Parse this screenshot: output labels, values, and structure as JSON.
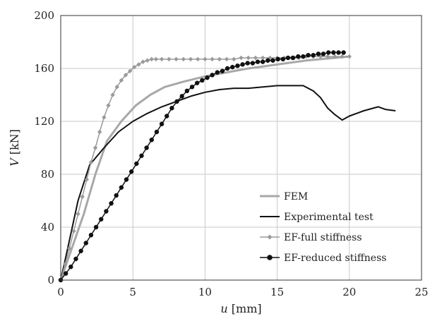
{
  "chart_data": {
    "type": "line",
    "xlabel_var": "u",
    "xlabel_unit": "[mm]",
    "ylabel_var": "V",
    "ylabel_unit": "[kN]",
    "xlim": [
      0,
      25
    ],
    "ylim": [
      0,
      200
    ],
    "xticks": [
      "0",
      "5",
      "10",
      "15",
      "20",
      "25"
    ],
    "yticks": [
      "0",
      "40",
      "80",
      "120",
      "160",
      "200"
    ],
    "grid": true,
    "legend_position": "bottom-right",
    "series": [
      {
        "name": "FEM",
        "color": "#a8a8a8",
        "marker": "none",
        "x": [
          0,
          0.8,
          1.6,
          2.4,
          3.2,
          4.2,
          5.2,
          6.2,
          7.2,
          8.5,
          10,
          11.5,
          13,
          15,
          17,
          19,
          20
        ],
        "y": [
          0,
          25,
          50,
          80,
          105,
          120,
          132,
          140,
          146,
          150,
          154,
          157,
          160,
          163,
          166,
          168,
          169
        ]
      },
      {
        "name": "Experimental test",
        "color": "#111111",
        "marker": "none",
        "x": [
          0,
          0.6,
          1.2,
          2.0,
          3.0,
          4.0,
          5.0,
          6.0,
          7.0,
          8.0,
          9.0,
          10.0,
          11.0,
          12.0,
          13.0,
          14.0,
          15.0,
          16.0,
          16.8,
          17.5,
          18.0,
          18.5,
          19.0,
          19.5,
          20.0,
          21.0,
          22.0,
          22.5,
          23.2
        ],
        "y": [
          0,
          30,
          60,
          87,
          100,
          112,
          120,
          126,
          131,
          135,
          139,
          142,
          144,
          145,
          145,
          146,
          147,
          147,
          147,
          143,
          138,
          130,
          125,
          121,
          124,
          128,
          131,
          129,
          128
        ]
      },
      {
        "name": "EF-full stiffness",
        "color": "#9a9a9a",
        "marker": "diamond",
        "x": [
          0,
          0.3,
          0.6,
          0.9,
          1.2,
          1.5,
          1.8,
          2.1,
          2.4,
          2.7,
          3.0,
          3.3,
          3.6,
          3.9,
          4.2,
          4.5,
          4.8,
          5.1,
          5.4,
          5.7,
          6.0,
          6.3,
          6.6,
          7.0,
          7.5,
          8.0,
          8.5,
          9.0,
          9.5,
          10.0,
          10.5,
          11.0,
          11.5,
          12.0,
          12.5,
          13.0,
          13.5,
          14.0,
          14.5,
          15.0,
          15.5,
          16.0,
          16.5,
          17.0,
          17.5,
          18.0,
          18.5,
          19.0,
          19.5,
          20.0
        ],
        "y": [
          0,
          12,
          24,
          37,
          50,
          63,
          76,
          89,
          100,
          112,
          123,
          132,
          140,
          146,
          151,
          155,
          158,
          161,
          163,
          165,
          166,
          167,
          167,
          167,
          167,
          167,
          167,
          167,
          167,
          167,
          167,
          167,
          167,
          167,
          168,
          168,
          168,
          168,
          168,
          168,
          168,
          168,
          168,
          169,
          169,
          169,
          169,
          169,
          169,
          169
        ]
      },
      {
        "name": "EF-reduced stiffness",
        "color": "#111111",
        "marker": "circle",
        "x": [
          0,
          0.35,
          0.7,
          1.05,
          1.4,
          1.75,
          2.1,
          2.45,
          2.8,
          3.15,
          3.5,
          3.85,
          4.2,
          4.55,
          4.9,
          5.25,
          5.6,
          5.95,
          6.3,
          6.65,
          7.0,
          7.35,
          7.7,
          8.05,
          8.4,
          8.75,
          9.1,
          9.45,
          9.8,
          10.15,
          10.5,
          10.85,
          11.2,
          11.55,
          11.9,
          12.25,
          12.6,
          12.95,
          13.3,
          13.65,
          14.0,
          14.35,
          14.7,
          15.05,
          15.4,
          15.75,
          16.1,
          16.45,
          16.8,
          17.15,
          17.5,
          17.85,
          18.2,
          18.55,
          18.9,
          19.25,
          19.6
        ],
        "y": [
          0,
          5,
          10,
          16,
          22,
          28,
          34,
          40,
          46,
          52,
          58,
          64,
          70,
          76,
          82,
          88,
          94,
          100,
          106,
          112,
          118,
          124,
          130,
          135,
          139,
          143,
          146,
          149,
          151,
          153,
          155,
          157,
          158,
          160,
          161,
          162,
          163,
          164,
          164,
          165,
          165,
          166,
          166,
          167,
          167,
          168,
          168,
          169,
          169,
          170,
          170,
          171,
          171,
          172,
          172,
          172,
          172
        ]
      }
    ]
  }
}
